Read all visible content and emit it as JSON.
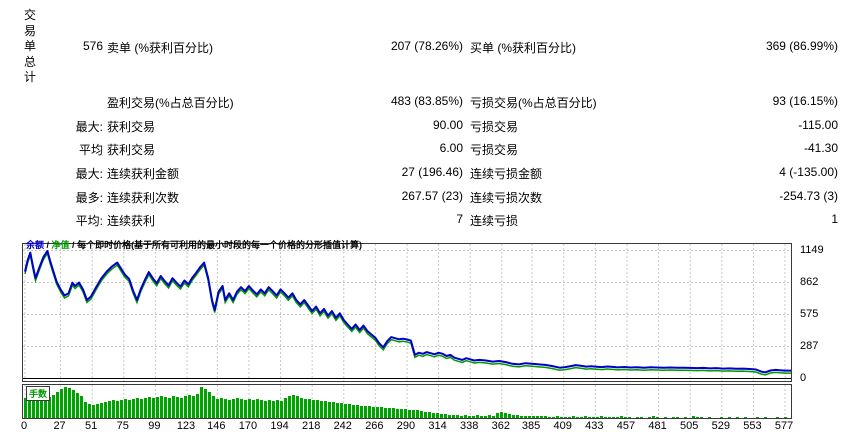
{
  "table": {
    "title_vertical": "交易单总计",
    "rows": [
      {
        "col1": "576",
        "col2": "卖单 (%获利百分比)",
        "col3": "207 (78.26%)",
        "col4": "买单 (%获利百分比)",
        "col5": "369 (86.99%)"
      },
      {
        "col1": "",
        "col2": "盈利交易(%占总百分比)",
        "col3": "483 (83.85%)",
        "col4": "亏损交易(%占总百分比)",
        "col5": "93 (16.15%)"
      },
      {
        "col1": "最大:",
        "col2": "获利交易",
        "col3": "90.00",
        "col4": "亏损交易",
        "col5": "-115.00"
      },
      {
        "col1": "平均",
        "col2": "获利交易",
        "col3": "6.00",
        "col4": "亏损交易",
        "col5": "-41.30"
      },
      {
        "col1": "最大:",
        "col2": "连续获利金额",
        "col3": "27 (196.46)",
        "col4": "连续亏损金额",
        "col5": "4 (-135.00)"
      },
      {
        "col1": "最多:",
        "col2": "连续获利次数",
        "col3": "267.57 (23)",
        "col4": "连续亏损次数",
        "col5": "-254.73 (3)"
      },
      {
        "col1": "平均:",
        "col2": "连续获利",
        "col3": "7",
        "col4": "连续亏损",
        "col5": "1"
      }
    ]
  },
  "chart_data": {
    "type": "line",
    "title": "",
    "legend": {
      "balance_label": "余额",
      "equity_label": "净值",
      "separator": " / ",
      "description": "每个即时价格(基于所有可利用的最小时段的每一个价格的分形插值计算)"
    },
    "lots_label": "手数",
    "colors": {
      "balance": "#0000C8",
      "equity": "#009900",
      "lots": "#00A400",
      "grid": "#C9C9C9",
      "axis_text": "#000000",
      "border": "#3A3A3A"
    },
    "ylim": [
      0,
      1149
    ],
    "xlim": [
      0,
      577
    ],
    "y_ticks": [
      1149,
      862,
      575,
      287,
      0
    ],
    "x_ticks": [
      0,
      27,
      51,
      75,
      99,
      123,
      146,
      170,
      194,
      218,
      242,
      266,
      290,
      314,
      338,
      362,
      385,
      409,
      433,
      457,
      481,
      505,
      529,
      553,
      577
    ],
    "series": [
      {
        "name": "余额",
        "type": "line"
      },
      {
        "name": "净值",
        "type": "line"
      },
      {
        "name": "手数",
        "type": "bar"
      }
    ],
    "balance_points": [
      [
        0,
        960
      ],
      [
        2,
        1060
      ],
      [
        4,
        1130
      ],
      [
        6,
        1010
      ],
      [
        8,
        900
      ],
      [
        11,
        1000
      ],
      [
        14,
        1090
      ],
      [
        17,
        1145
      ],
      [
        19,
        1060
      ],
      [
        21,
        980
      ],
      [
        24,
        870
      ],
      [
        27,
        800
      ],
      [
        30,
        745
      ],
      [
        33,
        765
      ],
      [
        36,
        860
      ],
      [
        38,
        830
      ],
      [
        41,
        862
      ],
      [
        44,
        800
      ],
      [
        47,
        705
      ],
      [
        50,
        735
      ],
      [
        54,
        820
      ],
      [
        58,
        900
      ],
      [
        62,
        960
      ],
      [
        66,
        1005
      ],
      [
        70,
        1040
      ],
      [
        73,
        985
      ],
      [
        76,
        930
      ],
      [
        79,
        895
      ],
      [
        82,
        790
      ],
      [
        85,
        705
      ],
      [
        88,
        805
      ],
      [
        91,
        885
      ],
      [
        94,
        955
      ],
      [
        97,
        900
      ],
      [
        100,
        855
      ],
      [
        103,
        920
      ],
      [
        106,
        875
      ],
      [
        109,
        835
      ],
      [
        112,
        900
      ],
      [
        115,
        860
      ],
      [
        118,
        825
      ],
      [
        121,
        880
      ],
      [
        124,
        845
      ],
      [
        127,
        905
      ],
      [
        130,
        950
      ],
      [
        133,
        1000
      ],
      [
        136,
        1040
      ],
      [
        139,
        905
      ],
      [
        142,
        705
      ],
      [
        144,
        615
      ],
      [
        147,
        780
      ],
      [
        150,
        830
      ],
      [
        152,
        705
      ],
      [
        155,
        765
      ],
      [
        158,
        705
      ],
      [
        161,
        780
      ],
      [
        164,
        820
      ],
      [
        167,
        785
      ],
      [
        170,
        830
      ],
      [
        173,
        790
      ],
      [
        176,
        755
      ],
      [
        179,
        800
      ],
      [
        182,
        765
      ],
      [
        185,
        820
      ],
      [
        188,
        785
      ],
      [
        191,
        745
      ],
      [
        194,
        800
      ],
      [
        197,
        765
      ],
      [
        200,
        725
      ],
      [
        203,
        765
      ],
      [
        206,
        705
      ],
      [
        209,
        665
      ],
      [
        212,
        705
      ],
      [
        215,
        655
      ],
      [
        218,
        605
      ],
      [
        221,
        645
      ],
      [
        224,
        585
      ],
      [
        227,
        625
      ],
      [
        230,
        565
      ],
      [
        233,
        605
      ],
      [
        236,
        545
      ],
      [
        239,
        585
      ],
      [
        242,
        525
      ],
      [
        245,
        485
      ],
      [
        248,
        445
      ],
      [
        251,
        485
      ],
      [
        254,
        435
      ],
      [
        257,
        475
      ],
      [
        260,
        425
      ],
      [
        263,
        395
      ],
      [
        266,
        365
      ],
      [
        269,
        315
      ],
      [
        272,
        280
      ],
      [
        275,
        335
      ],
      [
        278,
        372
      ],
      [
        281,
        362
      ],
      [
        284,
        352
      ],
      [
        287,
        357
      ],
      [
        290,
        350
      ],
      [
        293,
        340
      ],
      [
        296,
        212
      ],
      [
        299,
        232
      ],
      [
        302,
        222
      ],
      [
        305,
        237
      ],
      [
        308,
        227
      ],
      [
        311,
        217
      ],
      [
        314,
        232
      ],
      [
        317,
        222
      ],
      [
        320,
        202
      ],
      [
        323,
        212
      ],
      [
        326,
        187
      ],
      [
        329,
        177
      ],
      [
        332,
        167
      ],
      [
        335,
        182
      ],
      [
        338,
        172
      ],
      [
        341,
        162
      ],
      [
        345,
        167
      ],
      [
        350,
        162
      ],
      [
        355,
        152
      ],
      [
        360,
        157
      ],
      [
        365,
        147
      ],
      [
        370,
        132
      ],
      [
        375,
        127
      ],
      [
        380,
        137
      ],
      [
        385,
        132
      ],
      [
        390,
        127
      ],
      [
        395,
        122
      ],
      [
        400,
        112
      ],
      [
        406,
        97
      ],
      [
        410,
        102
      ],
      [
        415,
        112
      ],
      [
        418,
        120
      ],
      [
        422,
        114
      ],
      [
        426,
        107
      ],
      [
        430,
        110
      ],
      [
        434,
        106
      ],
      [
        438,
        102
      ],
      [
        442,
        108
      ],
      [
        446,
        104
      ],
      [
        450,
        100
      ],
      [
        455,
        103
      ],
      [
        460,
        99
      ],
      [
        465,
        101
      ],
      [
        470,
        97
      ],
      [
        475,
        101
      ],
      [
        480,
        99
      ],
      [
        485,
        97
      ],
      [
        490,
        99
      ],
      [
        495,
        96
      ],
      [
        500,
        97
      ],
      [
        505,
        95
      ],
      [
        510,
        93
      ],
      [
        515,
        95
      ],
      [
        520,
        91
      ],
      [
        525,
        93
      ],
      [
        530,
        89
      ],
      [
        535,
        91
      ],
      [
        540,
        87
      ],
      [
        545,
        89
      ],
      [
        550,
        85
      ],
      [
        555,
        81
      ],
      [
        559,
        62
      ],
      [
        562,
        56
      ],
      [
        566,
        72
      ],
      [
        570,
        77
      ],
      [
        573,
        74
      ],
      [
        577,
        71
      ]
    ],
    "lots_heights": [
      20,
      21,
      20,
      22,
      21,
      20,
      21,
      23,
      26,
      29,
      31,
      30,
      28,
      25,
      22,
      16,
      14,
      13,
      14,
      15,
      16,
      17,
      18,
      17,
      18,
      19,
      18,
      19,
      20,
      19,
      20,
      21,
      20,
      21,
      22,
      21,
      20,
      22,
      21,
      20,
      22,
      23,
      22,
      24,
      31,
      29,
      26,
      22,
      19,
      20,
      19,
      18,
      19,
      20,
      19,
      18,
      19,
      18,
      19,
      18,
      17,
      18,
      17,
      18,
      17,
      20,
      22,
      23,
      22,
      20,
      19,
      19,
      18,
      18,
      17,
      17,
      16,
      16,
      15,
      15,
      14,
      14,
      13,
      13,
      12,
      12,
      12,
      11,
      11,
      11,
      10,
      10,
      10,
      9,
      9,
      9,
      8,
      8,
      8,
      7,
      6,
      6,
      5,
      5,
      4,
      4,
      3,
      3,
      3,
      2,
      3,
      2,
      2,
      3,
      2,
      2,
      3,
      2,
      5,
      6,
      5,
      4,
      3,
      3,
      2,
      2,
      2,
      2,
      2,
      2,
      2,
      1,
      1,
      2,
      1,
      1,
      1,
      2,
      1,
      1,
      2,
      1,
      1,
      1,
      2,
      1,
      1,
      1,
      1,
      2,
      1,
      1,
      0,
      1,
      1,
      0,
      1,
      2,
      1,
      0,
      1,
      0,
      1,
      1,
      0,
      1,
      0,
      2,
      1,
      1,
      0,
      1,
      0,
      0,
      1,
      0,
      1,
      0,
      1,
      0,
      1,
      0,
      0,
      1,
      0,
      1,
      0,
      0,
      1,
      0,
      1
    ]
  }
}
